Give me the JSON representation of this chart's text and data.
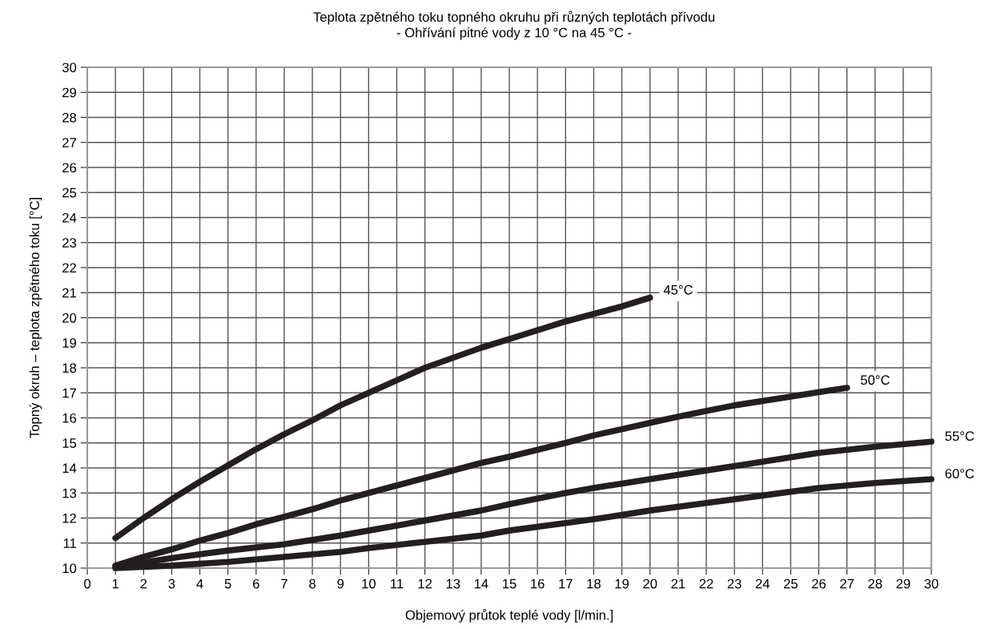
{
  "chart_data": {
    "type": "line",
    "title": "Teplota zpětného toku topného okruhu při různých teplotách přívodu",
    "subtitle": "- Ohřívání pitné vody z 10 °C na 45 °C -",
    "xlabel": "Objemový průtok teplé vody [l/min.]",
    "ylabel": "Topný okruh – teplota zpětného toku [°C]",
    "xlim": [
      0,
      30
    ],
    "xticks": [
      0,
      1,
      2,
      3,
      4,
      5,
      6,
      7,
      8,
      9,
      10,
      11,
      12,
      13,
      14,
      15,
      16,
      17,
      18,
      19,
      20,
      21,
      22,
      23,
      24,
      25,
      26,
      27,
      28,
      29,
      30
    ],
    "ylim": [
      10,
      30
    ],
    "yticks": [
      10,
      11,
      12,
      13,
      14,
      15,
      16,
      17,
      18,
      19,
      20,
      21,
      22,
      23,
      24,
      25,
      26,
      27,
      28,
      29,
      30
    ],
    "grid": true,
    "legend": false,
    "marker": "none",
    "line_style": "solid",
    "series": [
      {
        "name": "45°C",
        "color": "#231f20",
        "x": [
          1,
          2,
          3,
          4,
          5,
          6,
          7,
          8,
          9,
          10,
          11,
          12,
          13,
          14,
          15,
          16,
          17,
          18,
          19,
          20
        ],
        "values": [
          11.2,
          12.0,
          12.75,
          13.45,
          14.1,
          14.75,
          15.35,
          15.9,
          16.5,
          17.0,
          17.5,
          18.0,
          18.4,
          18.8,
          19.15,
          19.5,
          19.85,
          20.15,
          20.45,
          20.8
        ]
      },
      {
        "name": "50°C",
        "color": "#231f20",
        "x": [
          1,
          2,
          3,
          4,
          5,
          6,
          7,
          8,
          9,
          10,
          12,
          14,
          15,
          17,
          18,
          20,
          21,
          23,
          25,
          27
        ],
        "values": [
          10.1,
          10.45,
          10.75,
          11.1,
          11.4,
          11.75,
          12.05,
          12.35,
          12.7,
          13.0,
          13.6,
          14.2,
          14.45,
          15.0,
          15.3,
          15.8,
          16.05,
          16.5,
          16.85,
          17.2
        ]
      },
      {
        "name": "55°C",
        "color": "#231f20",
        "x": [
          1,
          3,
          5,
          7,
          9,
          10,
          12,
          14,
          15,
          17,
          18,
          20,
          22,
          24,
          26,
          28,
          30
        ],
        "values": [
          10.05,
          10.4,
          10.7,
          10.95,
          11.3,
          11.5,
          11.9,
          12.3,
          12.55,
          13.0,
          13.2,
          13.55,
          13.9,
          14.25,
          14.6,
          14.85,
          15.05
        ]
      },
      {
        "name": "60°C",
        "color": "#231f20",
        "x": [
          1,
          3,
          5,
          7,
          9,
          10,
          12,
          14,
          15,
          17,
          18,
          20,
          22,
          24,
          26,
          28,
          30
        ],
        "values": [
          10.0,
          10.1,
          10.25,
          10.45,
          10.65,
          10.8,
          11.05,
          11.3,
          11.5,
          11.8,
          11.95,
          12.3,
          12.6,
          12.9,
          13.2,
          13.4,
          13.55
        ]
      }
    ]
  }
}
